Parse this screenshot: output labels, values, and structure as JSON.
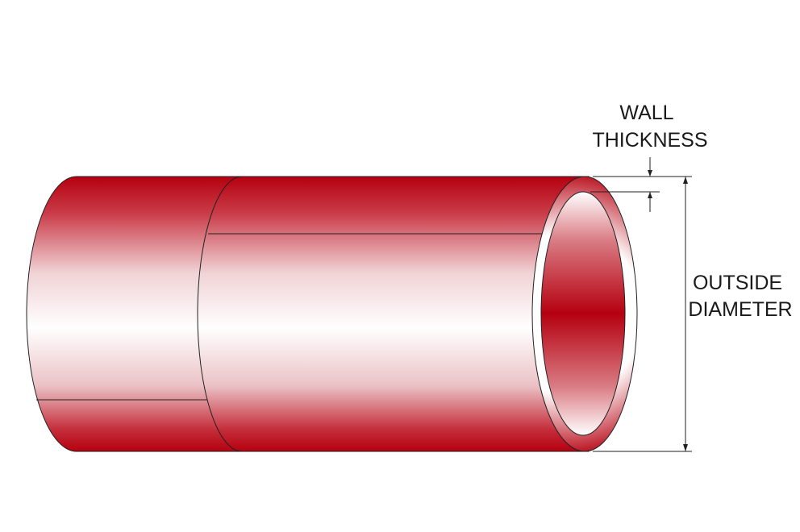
{
  "labels": {
    "wall_thickness": [
      "WALL",
      "THICKNESS"
    ],
    "outside_diameter": [
      "OUTSIDE",
      "DIAMETER"
    ]
  },
  "colors": {
    "pipe_red": "#b5000f",
    "highlight": "#ffffff",
    "outline": "#222222"
  }
}
